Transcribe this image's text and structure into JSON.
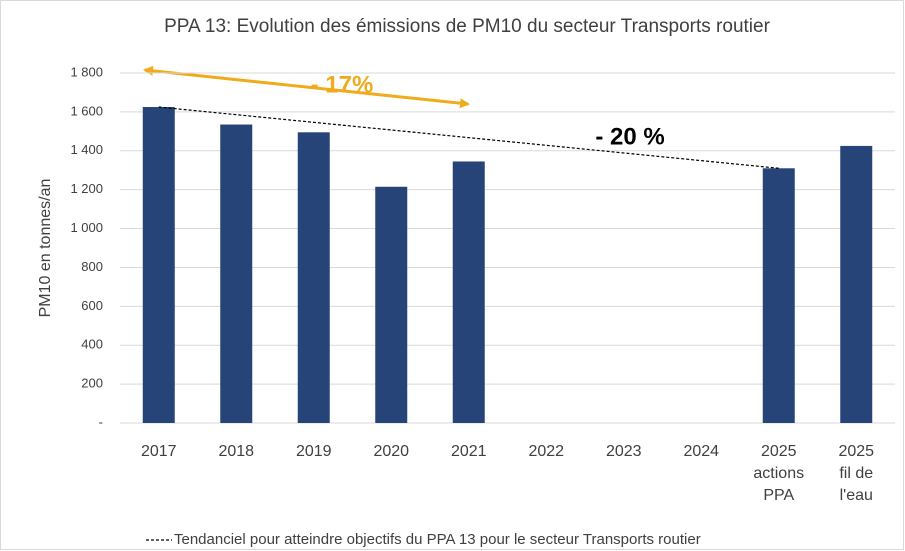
{
  "chart_data": {
    "type": "bar",
    "title": "PPA 13: Evolution des émissions de PM10 du secteur Transports routier",
    "y_label": "PM10 en tonnes/an",
    "categories": [
      "2017",
      "2018",
      "2019",
      "2020",
      "2021",
      "2022",
      "2023",
      "2024",
      [
        "2025",
        "actions",
        "PPA"
      ],
      [
        "2025",
        "fil de",
        "l'eau"
      ]
    ],
    "values": [
      1625,
      1535,
      1495,
      1215,
      1345,
      null,
      null,
      null,
      1310,
      1425
    ],
    "color": "#264478",
    "ylim": [
      0,
      1800
    ],
    "yticks": [
      {
        "value": 0,
        "label": "-"
      },
      200,
      400,
      600,
      800,
      {
        "value": 1000,
        "label": "1 000"
      },
      {
        "value": 1200,
        "label": "1 200"
      },
      {
        "value": 1400,
        "label": "1 400"
      },
      {
        "value": 1600,
        "label": "1 600"
      },
      {
        "value": 1800,
        "label": "1 800"
      }
    ],
    "grid": true,
    "trend": {
      "name": "Tendanciel pour atteindre objectifs du PPA 13 pour le secteur Transports routier",
      "values": [
        1625,
        1310
      ],
      "color": "#000000"
    },
    "annotations": [
      {
        "text": "-  17%",
        "color": "#f0ab1c"
      },
      {
        "text": "-  20 %",
        "color": "#000000"
      }
    ]
  }
}
